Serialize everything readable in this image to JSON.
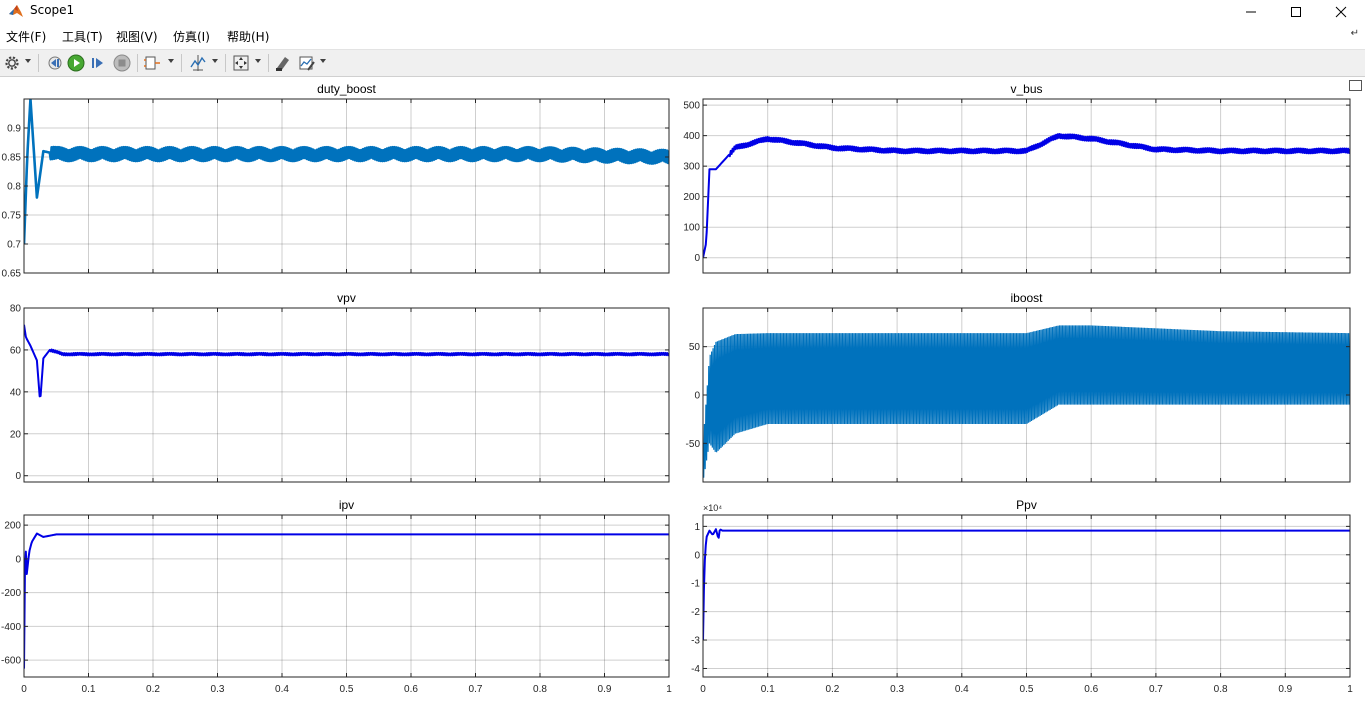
{
  "window": {
    "title": "Scope1"
  },
  "menu": [
    {
      "label": "文件(F)"
    },
    {
      "label": "工具(T)"
    },
    {
      "label": "视图(V)"
    },
    {
      "label": "仿真(I)"
    },
    {
      "label": "帮助(H)"
    }
  ],
  "toolbar": {
    "icons": [
      "settings-icon",
      "step-back-icon",
      "run-icon",
      "step-forward-icon",
      "stop-icon",
      "signal-selector-icon",
      "cursor-measure-icon",
      "zoom-fit-icon",
      "highlight-block-icon",
      "style-icon"
    ]
  },
  "colors": {
    "trace_dark": "#0000E6",
    "trace_light": "#0072BD",
    "grid": "#262626"
  },
  "chart_data": [
    {
      "type": "line",
      "title": "duty_boost",
      "xlim": [
        0,
        1
      ],
      "ylim": [
        0.65,
        0.95
      ],
      "xticks": [
        0,
        0.1,
        0.2,
        0.3,
        0.4,
        0.5,
        0.6,
        0.7,
        0.8,
        0.9,
        1
      ],
      "yticks": [
        0.65,
        0.7,
        0.75,
        0.8,
        0.85,
        0.9
      ],
      "ytick_labels": [
        "0.65",
        "0.7",
        "0.75",
        "0.8",
        "0.85",
        "0.9"
      ],
      "grid": true,
      "series": [
        {
          "color": "#0072BD",
          "x": [
            0,
            0.005,
            0.01,
            0.02,
            0.03,
            0.05,
            0.08,
            0.2,
            0.4,
            0.6,
            0.8,
            1.0
          ],
          "y": [
            0.7,
            0.85,
            0.95,
            0.78,
            0.86,
            0.855,
            0.855,
            0.855,
            0.855,
            0.855,
            0.855,
            0.85
          ],
          "ripple": 0.012
        }
      ]
    },
    {
      "type": "line",
      "title": "v_bus",
      "xlim": [
        0,
        1
      ],
      "ylim": [
        -50,
        520
      ],
      "xticks": [
        0,
        0.1,
        0.2,
        0.3,
        0.4,
        0.5,
        0.6,
        0.7,
        0.8,
        0.9,
        1
      ],
      "yticks": [
        0,
        100,
        200,
        300,
        400,
        500
      ],
      "ytick_labels": [
        "0",
        "100",
        "200",
        "300",
        "400",
        "500"
      ],
      "grid": true,
      "series": [
        {
          "color": "#0000E6",
          "x": [
            0,
            0.005,
            0.01,
            0.02,
            0.05,
            0.1,
            0.2,
            0.3,
            0.4,
            0.5,
            0.55,
            0.6,
            0.7,
            0.8,
            1.0
          ],
          "y": [
            0,
            50,
            290,
            290,
            360,
            390,
            360,
            350,
            350,
            350,
            400,
            390,
            355,
            350,
            350
          ],
          "ripple": 8
        }
      ]
    },
    {
      "type": "line",
      "title": "vpv",
      "xlim": [
        0,
        1
      ],
      "ylim": [
        -3,
        80
      ],
      "xticks": [
        0,
        0.1,
        0.2,
        0.3,
        0.4,
        0.5,
        0.6,
        0.7,
        0.8,
        0.9,
        1
      ],
      "yticks": [
        0,
        20,
        40,
        60,
        80
      ],
      "ytick_labels": [
        "0",
        "20",
        "40",
        "60",
        "80"
      ],
      "grid": true,
      "series": [
        {
          "color": "#0000E6",
          "x": [
            0,
            0.003,
            0.01,
            0.02,
            0.025,
            0.03,
            0.04,
            0.06,
            1.0
          ],
          "y": [
            72,
            66,
            62,
            55,
            35,
            56,
            60,
            58,
            58
          ],
          "ripple": 0.6
        }
      ]
    },
    {
      "type": "line",
      "title": "iboost",
      "xlim": [
        0,
        1
      ],
      "ylim": [
        -90,
        90
      ],
      "xticks": [
        0,
        0.1,
        0.2,
        0.3,
        0.4,
        0.5,
        0.6,
        0.7,
        0.8,
        0.9,
        1
      ],
      "yticks": [
        -50,
        0,
        50
      ],
      "ytick_labels": [
        "-50",
        "0",
        "50"
      ],
      "grid": true,
      "series": [
        {
          "color": "#0072BD",
          "x": [
            0,
            0.01,
            0.02,
            0.05,
            0.1,
            0.2,
            0.3,
            0.4,
            0.5,
            0.55,
            0.6,
            0.8,
            1.0
          ],
          "y_upper": [
            -50,
            40,
            55,
            63,
            64,
            64,
            64,
            64,
            64,
            72,
            72,
            66,
            64
          ],
          "y_lower": [
            -90,
            -50,
            -60,
            -40,
            -30,
            -30,
            -30,
            -30,
            -30,
            -10,
            -10,
            -10,
            -10
          ]
        }
      ]
    },
    {
      "type": "line",
      "title": "ipv",
      "xlim": [
        0,
        1
      ],
      "ylim": [
        -700,
        260
      ],
      "xticks": [
        0,
        0.1,
        0.2,
        0.3,
        0.4,
        0.5,
        0.6,
        0.7,
        0.8,
        0.9,
        1
      ],
      "xtick_labels": [
        "0",
        "0.1",
        "0.2",
        "0.3",
        "0.4",
        "0.5",
        "0.6",
        "0.7",
        "0.8",
        "0.9",
        "1"
      ],
      "yticks": [
        -600,
        -400,
        -200,
        0,
        200
      ],
      "ytick_labels": [
        "-600",
        "-400",
        "-200",
        "0",
        "200"
      ],
      "grid": true,
      "series": [
        {
          "color": "#0000E6",
          "x": [
            0,
            0.002,
            0.004,
            0.008,
            0.012,
            0.02,
            0.03,
            0.05,
            1.0
          ],
          "y": [
            -650,
            150,
            -100,
            40,
            100,
            150,
            130,
            145,
            145
          ]
        }
      ]
    },
    {
      "type": "line",
      "title": "Ppv",
      "exponent_label": "×10⁴",
      "xlim": [
        0,
        1
      ],
      "ylim": [
        -4.3,
        1.4
      ],
      "xticks": [
        0,
        0.1,
        0.2,
        0.3,
        0.4,
        0.5,
        0.6,
        0.7,
        0.8,
        0.9,
        1
      ],
      "xtick_labels": [
        "0",
        "0.1",
        "0.2",
        "0.3",
        "0.4",
        "0.5",
        "0.6",
        "0.7",
        "0.8",
        "0.9",
        "1"
      ],
      "yticks": [
        -4,
        -3,
        -2,
        -1,
        0,
        1
      ],
      "ytick_labels": [
        "-4",
        "-3",
        "-2",
        "-1",
        "0",
        "1"
      ],
      "grid": true,
      "series": [
        {
          "color": "#0000E6",
          "x": [
            0,
            0.002,
            0.005,
            0.01,
            0.015,
            0.02,
            0.024,
            0.026,
            0.03,
            1.0
          ],
          "y": [
            -3.0,
            -0.5,
            0.6,
            0.85,
            0.7,
            0.9,
            0.55,
            0.9,
            0.85,
            0.85
          ]
        }
      ]
    }
  ]
}
